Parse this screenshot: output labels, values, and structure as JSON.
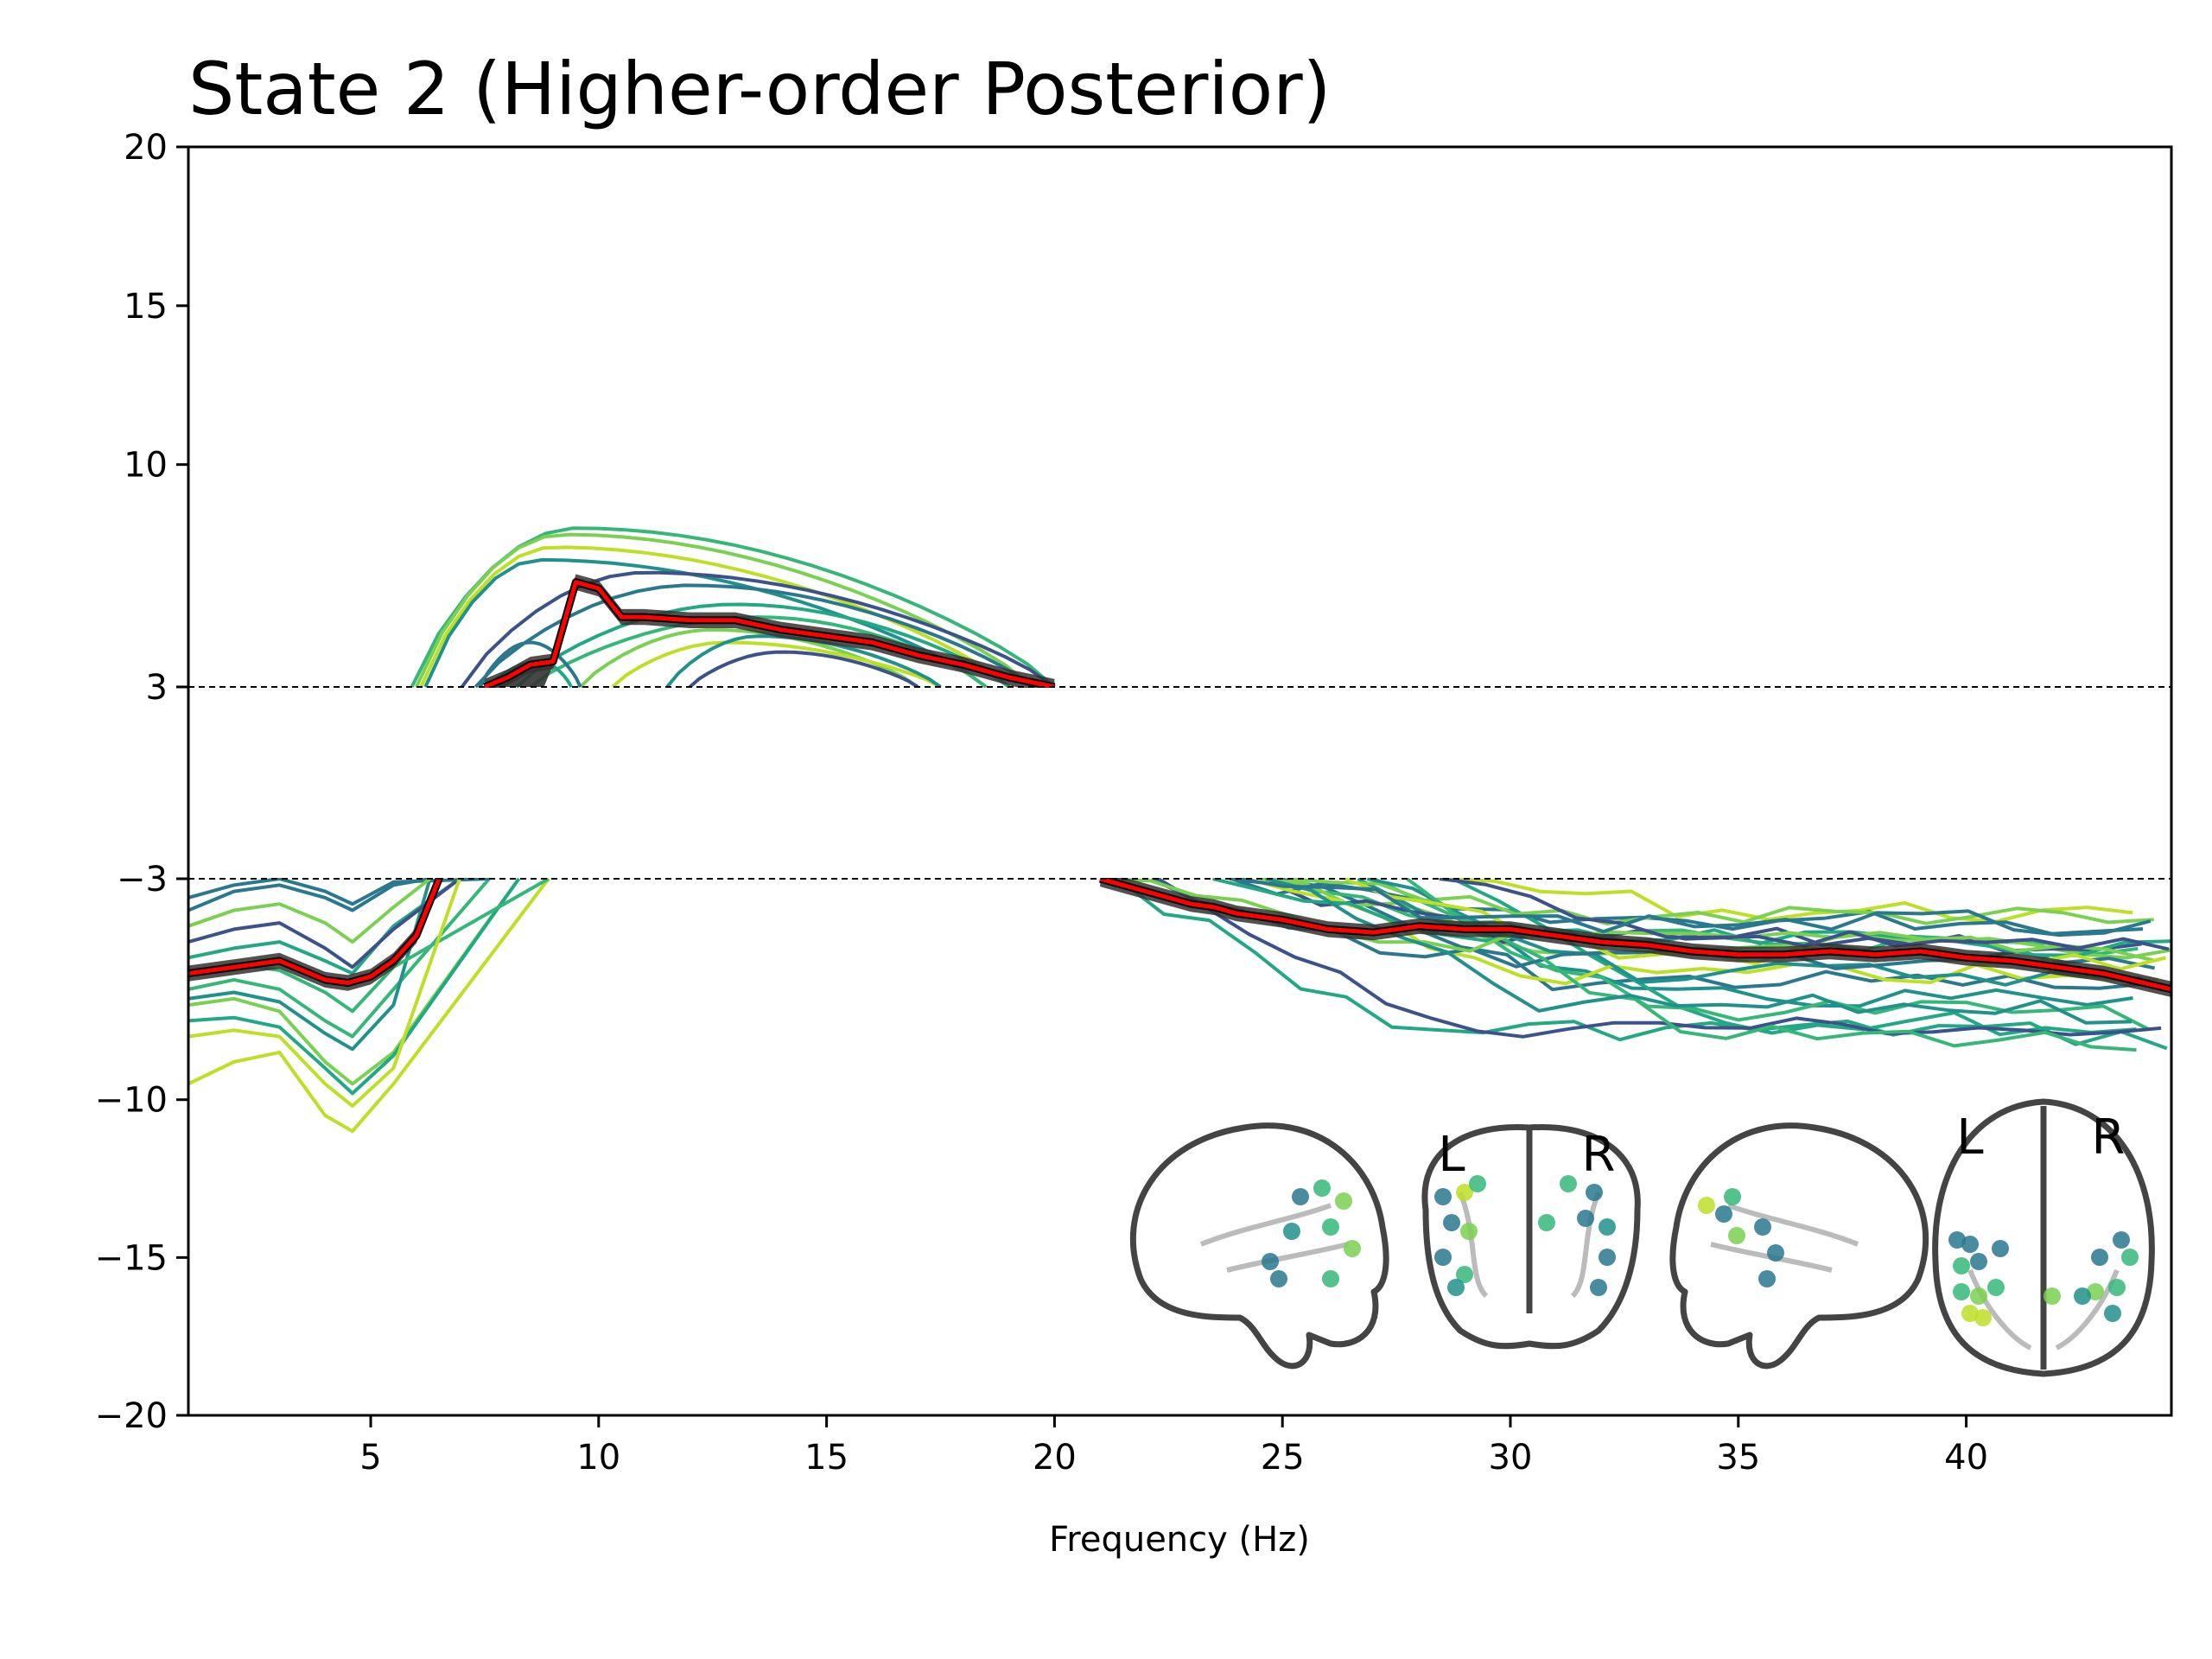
{
  "chart_data": {
    "type": "line",
    "title": "State 2 (Higher-order Posterior)",
    "xlabel": "Frequency (Hz)",
    "ylabel": "",
    "xlim": [
      1,
      44.5
    ],
    "ylim": [
      -20,
      20
    ],
    "xticks": [
      5,
      10,
      15,
      20,
      25,
      30,
      35,
      40
    ],
    "yticks": [
      -20,
      -15,
      -10,
      -3,
      3,
      10,
      15,
      20
    ],
    "ytick_labels": [
      "−20",
      "−15",
      "−10",
      "−3",
      "3",
      "10",
      "15",
      "20"
    ],
    "grid": false,
    "legend": "none",
    "threshold_lines": [
      3,
      -3
    ],
    "mean_series": {
      "color": "#ff0000",
      "x": [
        1,
        2,
        3,
        3.5,
        4,
        4.5,
        5,
        5.5,
        6,
        6.5,
        7.5,
        8,
        8.5,
        9,
        9.5,
        10,
        10.5,
        11,
        12,
        13,
        14,
        15,
        16,
        17,
        18,
        19,
        20,
        21,
        22,
        23,
        23.5,
        24,
        25,
        26,
        27,
        28,
        29,
        30,
        31,
        32,
        33,
        34,
        35,
        36,
        37,
        38,
        39,
        40,
        41,
        42,
        43,
        44.5
      ],
      "y": [
        -6.0,
        -5.8,
        -5.6,
        -5.9,
        -6.2,
        -6.3,
        -6.1,
        -5.6,
        -4.8,
        -3.0,
        3.0,
        3.3,
        3.7,
        3.8,
        6.3,
        6.1,
        5.2,
        5.2,
        5.1,
        5.1,
        4.8,
        4.6,
        4.4,
        4.0,
        3.7,
        3.3,
        3.0,
        -3.0,
        -3.4,
        -3.8,
        -3.9,
        -4.1,
        -4.3,
        -4.6,
        -4.7,
        -4.5,
        -4.6,
        -4.6,
        -4.8,
        -5.0,
        -5.1,
        -5.3,
        -5.4,
        -5.4,
        -5.3,
        -5.4,
        -5.3,
        -5.5,
        -5.6,
        -5.8,
        -6.0,
        -6.5
      ]
    },
    "spectra_colors": [
      "#2a788e",
      "#22a884",
      "#35b779",
      "#7ad151",
      "#bddf26",
      "#21918c",
      "#3b528b"
    ],
    "brain_labels": [
      "L",
      "R",
      "L",
      "R"
    ],
    "brain_node_colors": [
      "#2a788e",
      "#35b779",
      "#7ad151",
      "#bddf26",
      "#21918c"
    ]
  }
}
